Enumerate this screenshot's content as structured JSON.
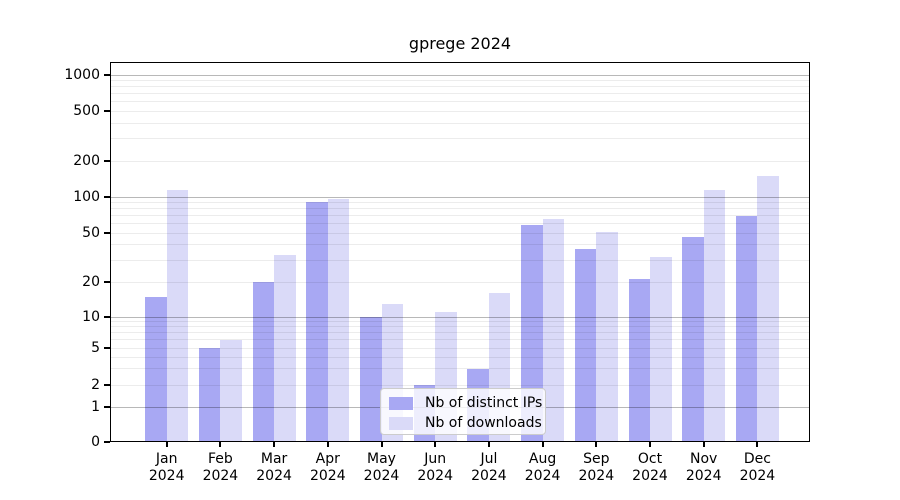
{
  "chart_data": {
    "type": "bar",
    "title": "gprege 2024",
    "categories": [
      "Jan 2024",
      "Feb 2024",
      "Mar 2024",
      "Apr 2024",
      "May 2024",
      "Jun 2024",
      "Jul 2024",
      "Aug 2024",
      "Sep 2024",
      "Oct 2024",
      "Nov 2024",
      "Dec 2024"
    ],
    "series": [
      {
        "name": "Nb of distinct IPs",
        "color": "#a8a8f3",
        "values": [
          15,
          5,
          20,
          90,
          10,
          2,
          3,
          58,
          37,
          21,
          46,
          69
        ]
      },
      {
        "name": "Nb of downloads",
        "color": "#dadaf8",
        "values": [
          115,
          6,
          33,
          97,
          13,
          11,
          16,
          66,
          51,
          32,
          115,
          150
        ]
      }
    ],
    "xlabel": "",
    "ylabel": "",
    "yscale": "symlog",
    "yticks": [
      0,
      1,
      2,
      5,
      10,
      20,
      50,
      100,
      200,
      500,
      1000
    ],
    "ylim": [
      0,
      1400
    ],
    "grid": true,
    "legend_position": "lower center",
    "grid_major_color": "rgba(0,0,0,0.28)",
    "grid_minor_color": "rgba(0,0,0,0.075)"
  }
}
